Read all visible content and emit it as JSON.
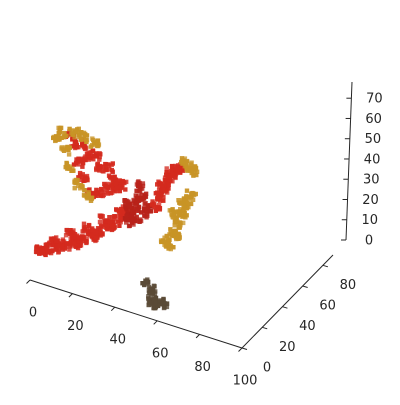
{
  "chart_data": {
    "type": "scatter",
    "projection": "3d",
    "subject": "voxelized phoenix bird sculpture",
    "title": "",
    "xlabel": "",
    "ylabel": "",
    "zlabel": "",
    "xlim": [
      0,
      100
    ],
    "ylim": [
      0,
      90
    ],
    "zlim": [
      0,
      78
    ],
    "x_ticks": [
      "0",
      "20",
      "40",
      "60",
      "80",
      "100"
    ],
    "y_ticks": [
      "0",
      "20",
      "40",
      "60",
      "80"
    ],
    "z_ticks": [
      "0",
      "10",
      "20",
      "30",
      "40",
      "50",
      "60",
      "70"
    ],
    "grid": false,
    "panes": "hidden",
    "colors": {
      "red": "#d42a1e",
      "deep_red": "#b8221a",
      "orange": "#d6531c",
      "gold": "#c89426",
      "olive": "#a88a2a",
      "dark_base": "#5a4a36",
      "axis": "#262626"
    },
    "regions": [
      {
        "name": "base",
        "color": "dark_base",
        "points": [
          [
            60,
            48,
            0
          ],
          [
            62,
            46,
            3
          ],
          [
            58,
            50,
            6
          ],
          [
            56,
            48,
            9
          ],
          [
            60,
            44,
            4
          ],
          [
            64,
            48,
            2
          ]
        ]
      },
      {
        "name": "tail",
        "color": "red",
        "points": [
          [
            8,
            44,
            12
          ],
          [
            12,
            44,
            14
          ],
          [
            16,
            44,
            16
          ],
          [
            20,
            44,
            18
          ],
          [
            24,
            44,
            21
          ],
          [
            28,
            44,
            24
          ],
          [
            32,
            44,
            27
          ],
          [
            36,
            44,
            31
          ],
          [
            40,
            44,
            35
          ],
          [
            44,
            44,
            39
          ],
          [
            48,
            44,
            43
          ],
          [
            14,
            44,
            18
          ],
          [
            22,
            44,
            25
          ],
          [
            30,
            44,
            30
          ],
          [
            38,
            44,
            37
          ],
          [
            46,
            44,
            45
          ],
          [
            10,
            42,
            13
          ],
          [
            18,
            42,
            19
          ],
          [
            26,
            42,
            24
          ],
          [
            34,
            42,
            30
          ],
          [
            42,
            42,
            37
          ]
        ]
      },
      {
        "name": "body",
        "color": "deep_red",
        "points": [
          [
            50,
            44,
            44
          ],
          [
            52,
            44,
            48
          ],
          [
            54,
            44,
            52
          ],
          [
            56,
            44,
            55
          ],
          [
            52,
            46,
            42
          ],
          [
            56,
            46,
            46
          ],
          [
            58,
            44,
            50
          ],
          [
            50,
            44,
            40
          ],
          [
            54,
            46,
            58
          ],
          [
            48,
            46,
            47
          ]
        ]
      },
      {
        "name": "wing_left",
        "color": "red",
        "points": [
          [
            24,
            44,
            70
          ],
          [
            26,
            44,
            62
          ],
          [
            28,
            44,
            55
          ],
          [
            32,
            44,
            48
          ],
          [
            36,
            44,
            50
          ],
          [
            40,
            44,
            53
          ],
          [
            44,
            44,
            55
          ],
          [
            30,
            44,
            66
          ],
          [
            36,
            44,
            62
          ],
          [
            42,
            44,
            58
          ],
          [
            22,
            44,
            74
          ],
          [
            28,
            44,
            72
          ],
          [
            34,
            44,
            68
          ],
          [
            40,
            44,
            64
          ],
          [
            46,
            44,
            57
          ]
        ]
      },
      {
        "name": "wing_edge",
        "color": "gold",
        "points": [
          [
            18,
            44,
            74
          ],
          [
            20,
            44,
            66
          ],
          [
            22,
            44,
            58
          ],
          [
            26,
            44,
            50
          ],
          [
            30,
            44,
            46
          ],
          [
            16,
            44,
            70
          ],
          [
            34,
            44,
            74
          ],
          [
            24,
            44,
            76
          ],
          [
            28,
            44,
            75
          ]
        ]
      },
      {
        "name": "neck_head",
        "color": "red",
        "points": [
          [
            62,
            44,
            52
          ],
          [
            64,
            44,
            57
          ],
          [
            66,
            44,
            62
          ],
          [
            68,
            44,
            66
          ],
          [
            70,
            44,
            70
          ],
          [
            72,
            44,
            74
          ],
          [
            74,
            44,
            76
          ],
          [
            66,
            42,
            64
          ],
          [
            70,
            42,
            72
          ]
        ]
      },
      {
        "name": "beak",
        "color": "gold",
        "points": [
          [
            76,
            44,
            78
          ],
          [
            78,
            44,
            77
          ],
          [
            80,
            44,
            76
          ]
        ]
      },
      {
        "name": "wing_right",
        "color": "gold",
        "points": [
          [
            64,
            54,
            28
          ],
          [
            66,
            54,
            34
          ],
          [
            68,
            54,
            40
          ],
          [
            70,
            54,
            46
          ],
          [
            72,
            54,
            52
          ],
          [
            74,
            54,
            56
          ],
          [
            62,
            54,
            30
          ],
          [
            66,
            54,
            44
          ],
          [
            70,
            54,
            50
          ],
          [
            68,
            52,
            36
          ]
        ]
      }
    ]
  }
}
